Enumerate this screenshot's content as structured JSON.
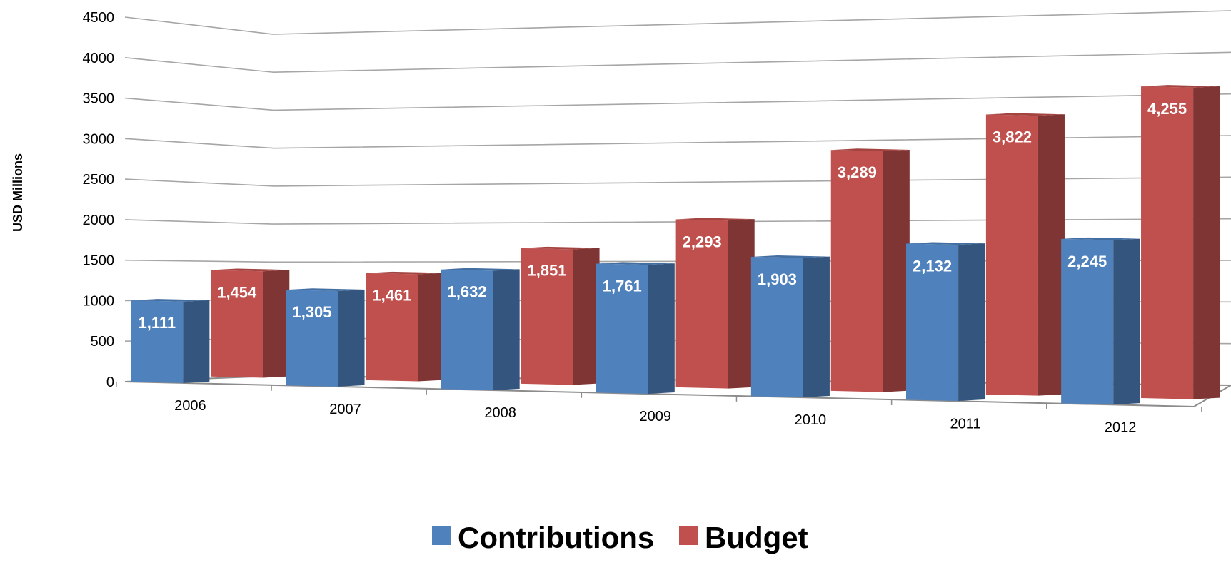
{
  "chart_data": {
    "type": "bar",
    "categories": [
      "2006",
      "2007",
      "2008",
      "2009",
      "2010",
      "2011",
      "2012"
    ],
    "series": [
      {
        "name": "Contributions",
        "color": "#4F81BD",
        "values": [
          1111,
          1305,
          1632,
          1761,
          1903,
          2132,
          2245
        ],
        "labels": [
          "1,111",
          "1,305",
          "1,632",
          "1,761",
          "1,903",
          "2,132",
          "2,245"
        ]
      },
      {
        "name": "Budget",
        "color": "#C0504D",
        "values": [
          1454,
          1461,
          1851,
          2293,
          3289,
          3822,
          4255
        ],
        "labels": [
          "1,454",
          "1,461",
          "1,851",
          "2,293",
          "3,289",
          "3,822",
          "4,255"
        ]
      }
    ],
    "title": "",
    "xlabel": "",
    "ylabel": "USD Millions",
    "ylim": [
      0,
      4500
    ],
    "yticks": [
      "0",
      "500",
      "1000",
      "1500",
      "2000",
      "2500",
      "3000",
      "3500",
      "4000",
      "4500"
    ],
    "grid": true,
    "legend": "bottom-center",
    "style": "3d-clustered-column"
  }
}
